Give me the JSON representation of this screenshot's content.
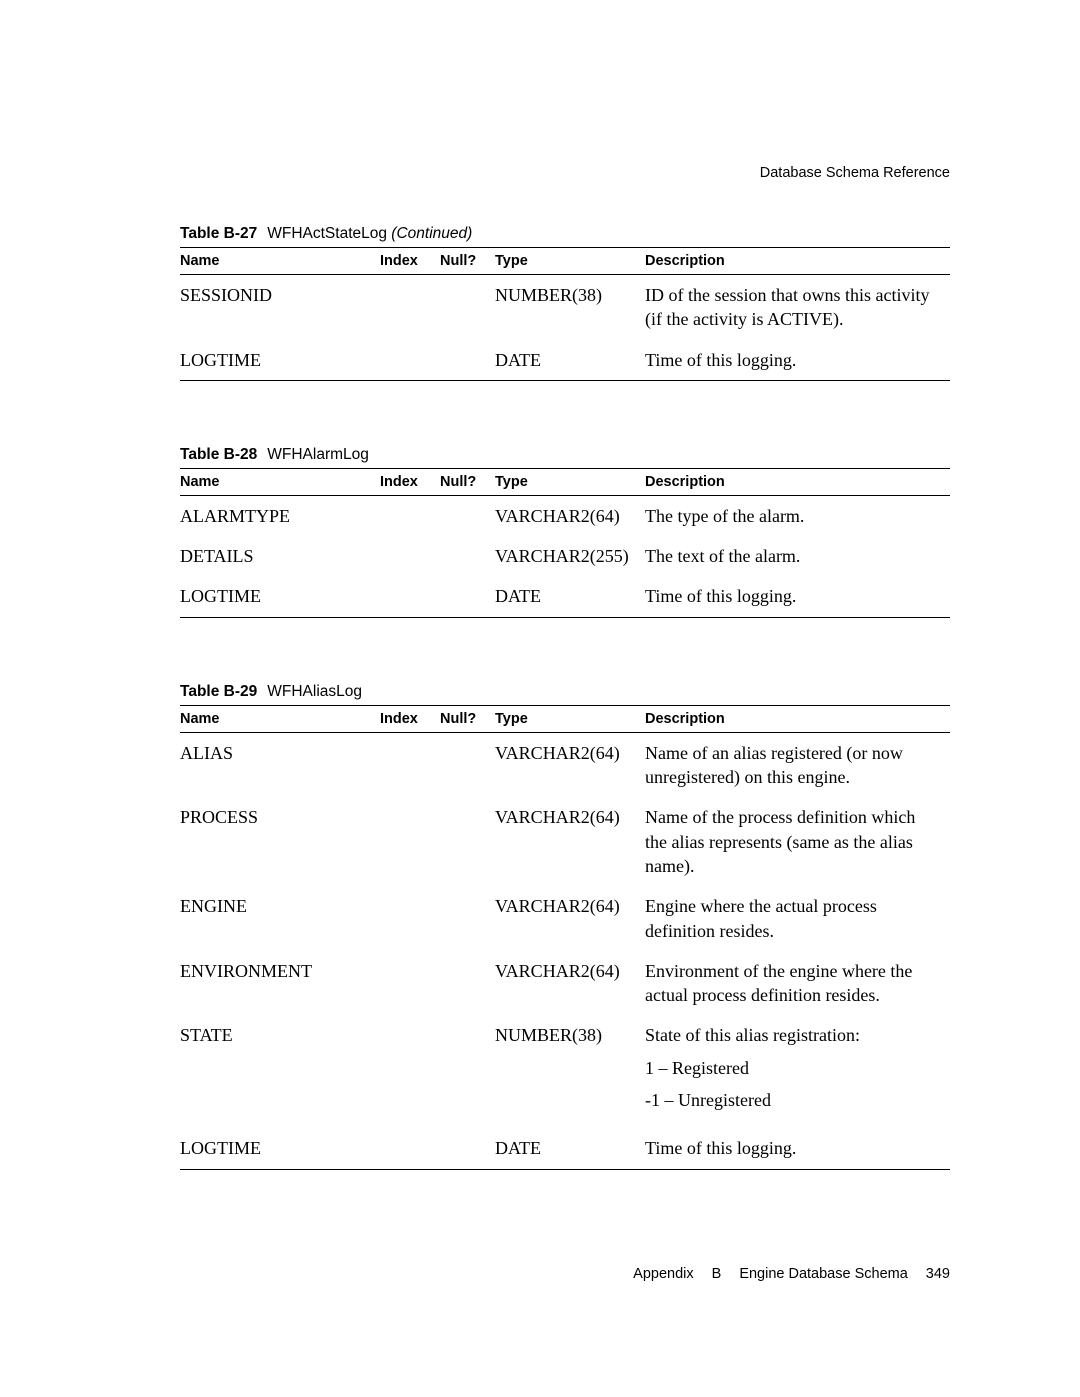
{
  "header": {
    "section": "Database Schema Reference"
  },
  "footer": {
    "appendix_label": "Appendix",
    "appendix_letter": "B",
    "chapter_title": "Engine Database Schema",
    "page_number": "349"
  },
  "columns": {
    "name": "Name",
    "index": "Index",
    "null": "Null?",
    "type": "Type",
    "description": "Description"
  },
  "tables": [
    {
      "caption_label": "Table B-27",
      "caption_title": "WFHActStateLog",
      "continued": "(Continued)",
      "rows": [
        {
          "name": "SESSIONID",
          "index": "",
          "null": "",
          "type": "NUMBER(38)",
          "desc": "ID of the session that owns this activity (if the activity is ACTIVE)."
        },
        {
          "name": "LOGTIME",
          "index": "",
          "null": "",
          "type": "DATE",
          "desc": "Time of this logging."
        }
      ]
    },
    {
      "caption_label": "Table B-28",
      "caption_title": "WFHAlarmLog",
      "continued": "",
      "rows": [
        {
          "name": "ALARMTYPE",
          "index": "",
          "null": "",
          "type": "VARCHAR2(64)",
          "desc": "The type of the alarm."
        },
        {
          "name": "DETAILS",
          "index": "",
          "null": "",
          "type": "VARCHAR2(255)",
          "desc": "The text of the alarm."
        },
        {
          "name": "LOGTIME",
          "index": "",
          "null": "",
          "type": "DATE",
          "desc": "Time of this logging."
        }
      ]
    },
    {
      "caption_label": "Table B-29",
      "caption_title": "WFHAliasLog",
      "continued": "",
      "rows": [
        {
          "name": "ALIAS",
          "index": "",
          "null": "",
          "type": "VARCHAR2(64)",
          "desc": "Name of an alias registered (or now unregistered) on this engine."
        },
        {
          "name": "PROCESS",
          "index": "",
          "null": "",
          "type": "VARCHAR2(64)",
          "desc": "Name of the process definition which the alias represents (same as the alias name)."
        },
        {
          "name": "ENGINE",
          "index": "",
          "null": "",
          "type": "VARCHAR2(64)",
          "desc": "Engine where the actual process definition resides."
        },
        {
          "name": "ENVIRONMENT",
          "index": "",
          "null": "",
          "type": "VARCHAR2(64)",
          "desc": "Environment of the engine where the actual process definition resides."
        },
        {
          "name": "STATE",
          "index": "",
          "null": "",
          "type": "NUMBER(38)",
          "desc_lines": [
            "State of this alias registration:",
            "1 – Registered",
            "-1 – Unregistered"
          ]
        },
        {
          "name": "LOGTIME",
          "index": "",
          "null": "",
          "type": "DATE",
          "desc": "Time of this logging."
        }
      ]
    }
  ]
}
